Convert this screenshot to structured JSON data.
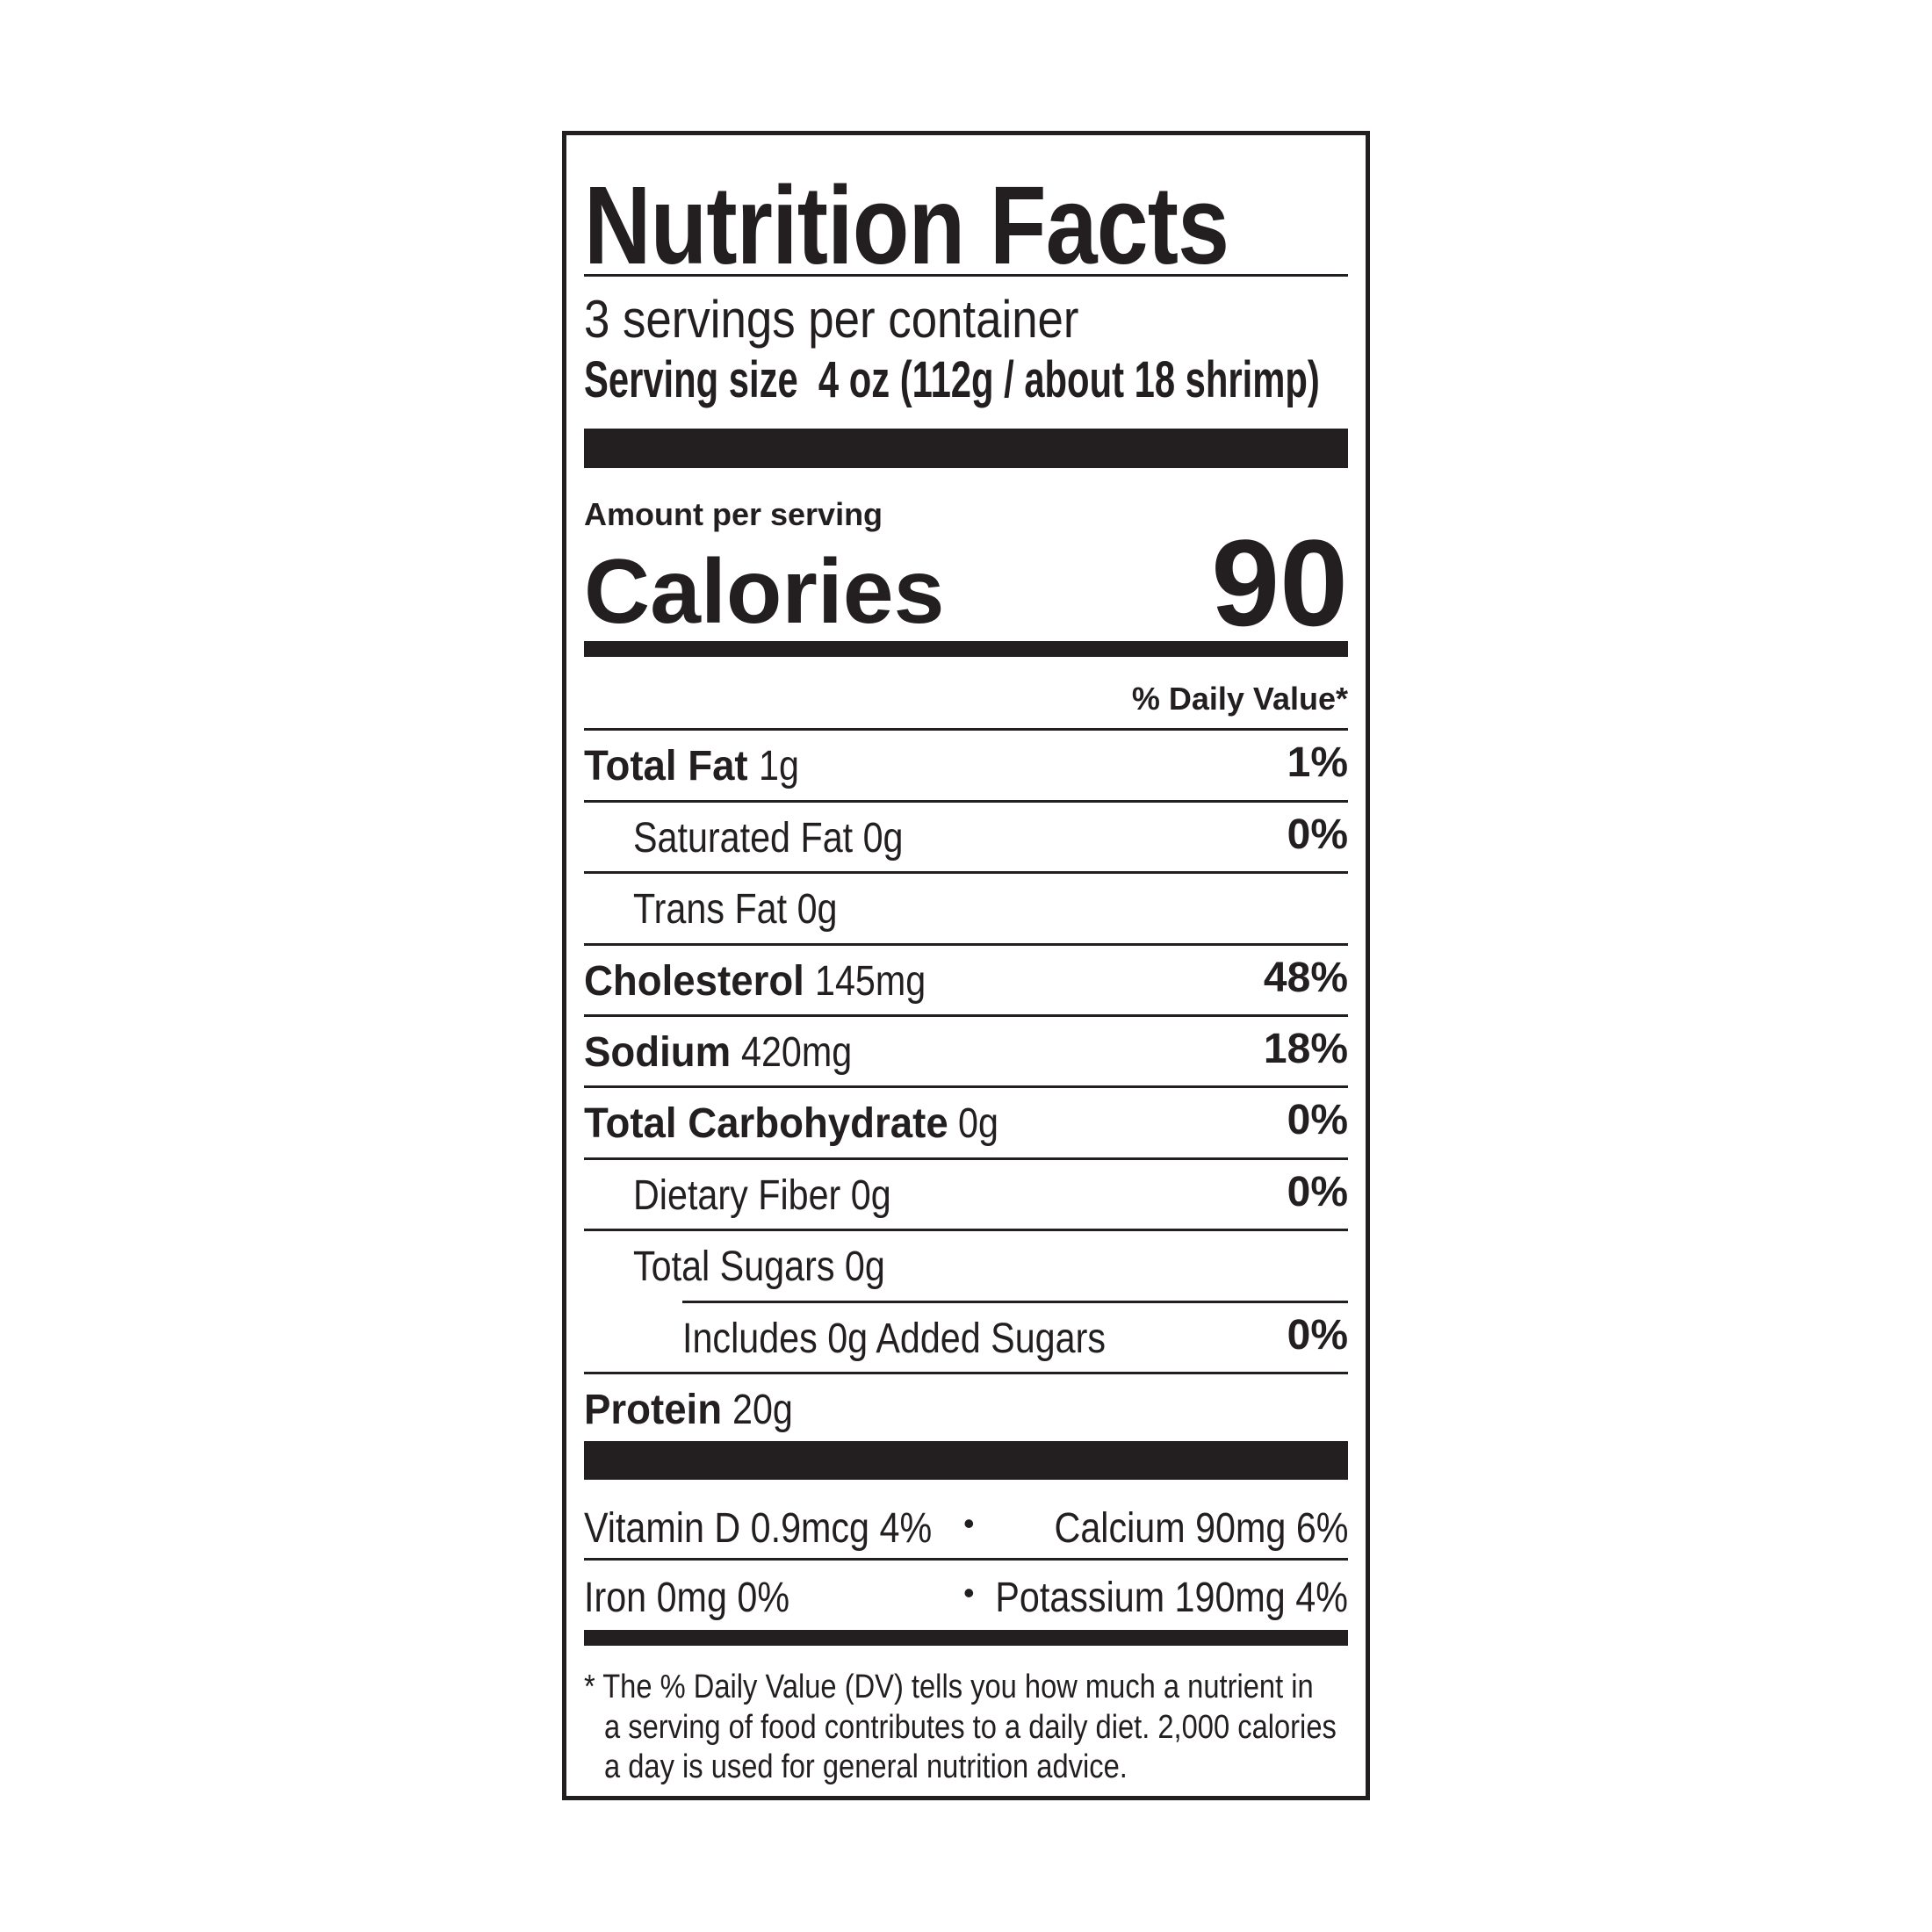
{
  "title": "Nutrition Facts",
  "servings_per_container": "3 servings per container",
  "serving_size_label": "Serving size",
  "serving_size_value": "4 oz (112g / about 18 shrimp)",
  "amount_per_serving": "Amount per serving",
  "calories_label": "Calories",
  "calories_value": "90",
  "daily_value_header": "% Daily Value*",
  "nutrients": [
    {
      "name": "Total Fat",
      "amount": "1g",
      "dv": "1%"
    },
    {
      "name": "Saturated Fat 0g",
      "amount": "",
      "dv": "0%"
    },
    {
      "name": "Trans Fat 0g",
      "amount": "",
      "dv": ""
    },
    {
      "name": "Cholesterol",
      "amount": "145mg",
      "dv": "48%"
    },
    {
      "name": "Sodium",
      "amount": "420mg",
      "dv": "18%"
    },
    {
      "name": "Total Carbohydrate",
      "amount": "0g",
      "dv": "0%"
    },
    {
      "name": "Dietary Fiber 0g",
      "amount": "",
      "dv": "0%"
    },
    {
      "name": "Total Sugars 0g",
      "amount": "",
      "dv": ""
    },
    {
      "name": "Includes 0g Added Sugars",
      "amount": "",
      "dv": "0%"
    },
    {
      "name": "Protein",
      "amount": "20g",
      "dv": ""
    }
  ],
  "micros": {
    "vitamin_d": "Vitamin D 0.9mcg 4%",
    "calcium": "Calcium 90mg 6%",
    "iron": "Iron 0mg 0%",
    "potassium": "Potassium 190mg 4%",
    "bullet": "•"
  },
  "footnote": {
    "line1": "* The % Daily Value (DV) tells you how much a nutrient in",
    "line2": "a serving of food contributes to a daily diet. 2,000 calories",
    "line3": "a day is used for general nutrition advice."
  }
}
